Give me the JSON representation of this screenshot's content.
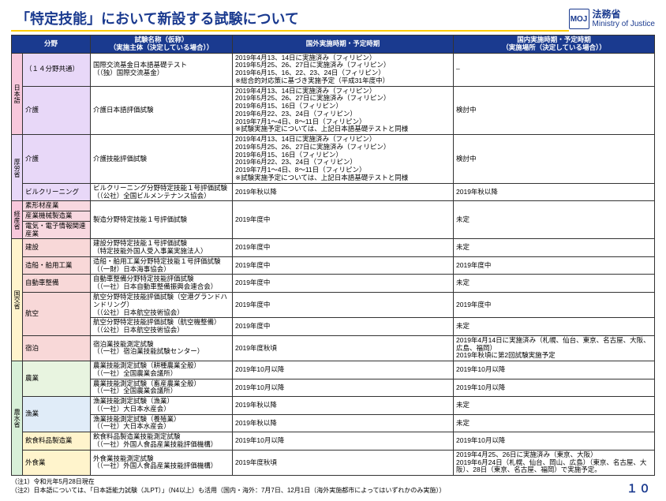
{
  "title": "「特定技能」において新設する試験について",
  "ministry_jp": "法務省",
  "ministry_en": "Ministry of Justice",
  "logo_text": "MOJ",
  "headers": {
    "field": "分野",
    "exam": "試験名称（仮称）\n（実施主体（決定している場合））",
    "overseas": "国外実施時期・予定時期",
    "domestic": "国内実施時期・予定時期\n（実施場所（決定している場合））"
  },
  "columns": {
    "vcol": "14px",
    "field": "86px",
    "exam": "180px",
    "overseas": "280px",
    "domestic": "auto"
  },
  "groups": [
    {
      "label": "日本語",
      "class": "v-pink",
      "rows": 2,
      "items": [
        {
          "field": "（１４分野共通）",
          "fieldClass": "c-lav",
          "exam": "国際交流基金日本語基礎テスト\n（（独）国際交流基金）",
          "overseas": "2019年4月13、14日に実施済み（フィリピン）\n2019年5月25、26、27日に実施済み（フィリピン）\n2019年6月15、16、22、23、24日（フィリピン）\n※総合的対応策に基づき実施予定（平成31年度中）",
          "domestic": "–"
        },
        {
          "field": "介護",
          "fieldClass": "c-lav",
          "exam": "介護日本語評価試験",
          "overseas": "2019年4月13、14日に実施済み（フィリピン）\n2019年5月25、26、27日に実施済み（フィリピン）\n2019年6月15、16日（フィリピン）\n2019年6月22、23、24日（フィリピン）\n2019年7月1〜4日、8〜11日（フィリピン）\n※試験実施予定については、上記日本語基礎テストと同様",
          "domestic": "検討中"
        }
      ]
    },
    {
      "label": "厚労省",
      "class": "v-lav",
      "rows": 2,
      "items": [
        {
          "field": "介護",
          "fieldClass": "c-lav",
          "exam": "介護技能評価試験",
          "overseas": "2019年4月13、14日に実施済み（フィリピン）\n2019年5月25、26、27日に実施済み（フィリピン）\n2019年6月15、16日（フィリピン）\n2019年6月22、23、24日（フィリピン）\n2019年7月1〜4日、8〜11日（フィリピン）\n※試験実施予定については、上記日本語基礎テストと同様",
          "domestic": "検討中"
        },
        {
          "field": "ビルクリーニング",
          "fieldClass": "c-lav",
          "exam": "ビルクリーニング分野特定技能１号評価試験\n（（公社）全国ビルメンテナンス協会）",
          "overseas": "2019年秋以降",
          "domestic": "2019年秋以降"
        }
      ]
    },
    {
      "label": "経産省",
      "class": "v-pink",
      "rows": 3,
      "items": [
        {
          "field": "素形材産業",
          "fieldClass": "c-pink",
          "exam": "製造分野特定技能１号評価試験",
          "examRowspan": 3,
          "overseas": "2019年度中",
          "overseasRowspan": 3,
          "domestic": "未定",
          "domesticRowspan": 3
        },
        {
          "field": "産業機械製造業",
          "fieldClass": "c-pink"
        },
        {
          "field": "電気・電子情報関連産業",
          "fieldClass": "c-pink"
        }
      ]
    },
    {
      "label": "国交省",
      "class": "v-cream",
      "rows": 6,
      "items": [
        {
          "field": "建設",
          "fieldClass": "c-salmon",
          "exam": "建設分野特定技能１号評価試験\n（特定技能外国人受入事業実施法人）",
          "overseas": "2019年度中",
          "domestic": "未定"
        },
        {
          "field": "造船・舶用工業",
          "fieldClass": "c-salmon",
          "exam": "造船・舶用工業分野特定技能１号評価試験\n（（一財）日本海事協会）",
          "overseas": "2019年度中",
          "domestic": "2019年度中"
        },
        {
          "field": "自動車整備",
          "fieldClass": "c-salmon",
          "exam": "自動車整備分野特定技能評価試験\n（（一社）日本自動車整備振興会連合会）",
          "overseas": "2019年度中",
          "domestic": "未定"
        },
        {
          "field": "航空",
          "fieldClass": "c-salmon",
          "fieldRowspan": 2,
          "exam": "航空分野特定技能評価試験（空港グランドハンドリング）\n（（公社）日本航空技術協会）",
          "overseas": "2019年度中",
          "domestic": "2019年度中"
        },
        {
          "exam": "航空分野特定技能評価試験（航空機整備）\n（（公社）日本航空技術協会）",
          "overseas": "2019年度中",
          "domestic": "未定"
        },
        {
          "field": "宿泊",
          "fieldClass": "c-salmon",
          "exam": "宿泊業技能測定試験\n（（一社）宿泊業技能試験センター）",
          "overseas": "2019年度秋頃",
          "domestic": "2019年4月14日に実施済み（札幌、仙台、東京、名古屋、大阪、広島、福岡）\n2019年秋頃に第2回試験実施予定"
        }
      ]
    },
    {
      "label": "農水省",
      "class": "v-green",
      "rows": 6,
      "items": [
        {
          "field": "農業",
          "fieldClass": "c-ltgreen",
          "fieldRowspan": 2,
          "exam": "農業技能測定試験（耕種農業全般）\n（（一社）全国農業会議所）",
          "overseas": "2019年10月以降",
          "domestic": "2019年10月以降"
        },
        {
          "exam": "農業技能測定試験（畜産農業全般）\n（（一社）全国農業会議所）",
          "overseas": "2019年10月以降",
          "domestic": "2019年10月以降"
        },
        {
          "field": "漁業",
          "fieldClass": "c-ltblue",
          "fieldRowspan": 2,
          "exam": "漁業技能測定試験（漁業）\n（（一社）大日本水産会）",
          "overseas": "2019年秋以降",
          "domestic": "未定"
        },
        {
          "exam": "漁業技能測定試験（養殖業）\n（（一社）大日本水産会）",
          "overseas": "2019年秋以降",
          "domestic": "未定"
        },
        {
          "field": "飲食料品製造業",
          "fieldClass": "c-cream",
          "exam": "飲食料品製造業技能測定試験\n（（一社）外国人食品産業技能評価機構）",
          "overseas": "2019年10月以降",
          "domestic": "2019年10月以降"
        },
        {
          "field": "外食業",
          "fieldClass": "c-cream",
          "exam": "外食業技能測定試験\n（（一社）外国人食品産業技能評価機構）",
          "overseas": "2019年度秋頃",
          "domestic": "2019年4月25、26日に実施済み（東京、大阪）\n2019年6月24日（札幌、仙台、岡山、広島）（東京、名古屋、大阪）、28日（東京、名古屋、福岡）で実施予定。"
        }
      ]
    }
  ],
  "notes": [
    "（注1）令和元年5月28日現在",
    "（注2）日本語については、「日本語能力試験（JLPT）」（N4以上）も活用（国内・海外：7月7日、12月1日（海外実施都市によってはいずれかのみ実施））"
  ],
  "pagenum": "１０"
}
